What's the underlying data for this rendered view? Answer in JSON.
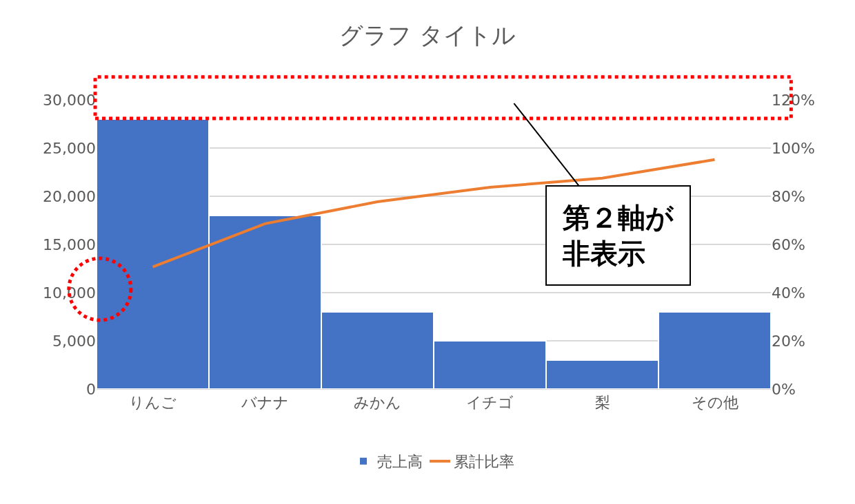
{
  "chart_data": {
    "type": "bar",
    "title": "グラフ タイトル",
    "categories": [
      "りんご",
      "バナナ",
      "みかん",
      "イチゴ",
      "梨",
      "その他"
    ],
    "series": [
      {
        "name": "売上高",
        "color": "#4472c4",
        "values": [
          28000,
          18000,
          8000,
          5000,
          3000,
          8000
        ]
      },
      {
        "name": "累計比率",
        "type": "line",
        "axis": "y2",
        "color": "#ed7d31",
        "marker": "none",
        "values": [
          0.507,
          0.686,
          0.777,
          0.837,
          0.875,
          0.952
        ]
      }
    ],
    "ylim": [
      0,
      30000
    ],
    "yticks": [
      {
        "value": 0,
        "label": "0"
      },
      {
        "value": 5000,
        "label": "5,000"
      },
      {
        "value": 10000,
        "label": "10,000"
      },
      {
        "value": 15000,
        "label": "15,000"
      },
      {
        "value": 20000,
        "label": "20,000"
      },
      {
        "value": 25000,
        "label": "25,000"
      },
      {
        "value": 30000,
        "label": "30,000"
      }
    ],
    "y2lim": [
      0,
      1.2
    ],
    "y2ticks": [
      {
        "value": 0,
        "label": "0%"
      },
      {
        "value": 0.2,
        "label": "20%"
      },
      {
        "value": 0.4,
        "label": "40%"
      },
      {
        "value": 0.6,
        "label": "60%"
      },
      {
        "value": 0.8,
        "label": "80%"
      },
      {
        "value": 1.0,
        "label": "100%"
      },
      {
        "value": 1.2,
        "label": "120%"
      }
    ],
    "grid": "y",
    "legend": "bottom",
    "annotations": [
      "第２軸が非表示"
    ]
  }
}
